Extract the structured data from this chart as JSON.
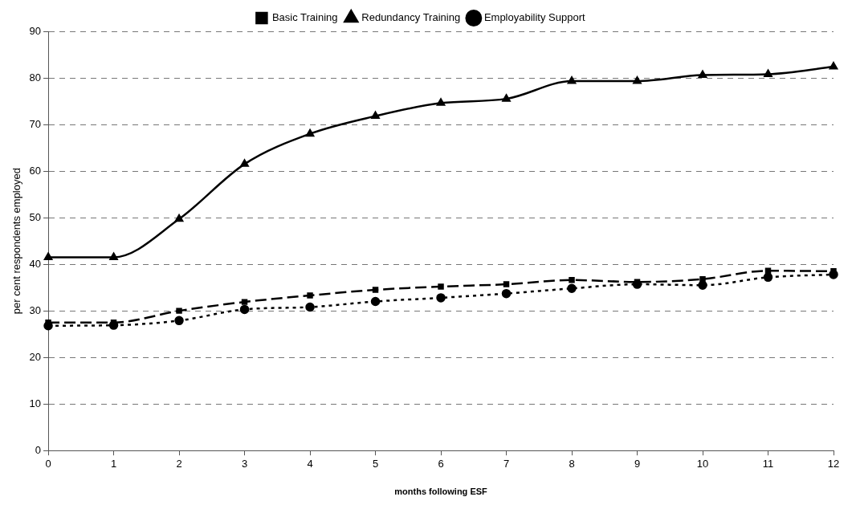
{
  "chart_data": {
    "type": "line",
    "xlabel": "months following ESF",
    "ylabel": "per cent respondents employed",
    "x": [
      0,
      1,
      2,
      3,
      4,
      5,
      6,
      7,
      8,
      9,
      10,
      11,
      12
    ],
    "xlim": [
      0,
      12
    ],
    "xticks": [
      0,
      1,
      2,
      3,
      4,
      5,
      6,
      7,
      8,
      9,
      10,
      11,
      12
    ],
    "ylim": [
      0,
      90
    ],
    "yticks": [
      0,
      10,
      20,
      30,
      40,
      50,
      60,
      70,
      80,
      90
    ],
    "grid": "y",
    "legend": "top",
    "series": [
      {
        "name": "Basic Training",
        "color": "#000000",
        "marker": "square",
        "line_style": "dashed",
        "values": [
          27.5,
          27.5,
          30,
          31.9,
          33.3,
          34.5,
          35.2,
          35.7,
          36.6,
          36.2,
          36.8,
          38.6,
          38.5
        ]
      },
      {
        "name": "Redundancy Training",
        "color": "#000000",
        "marker": "triangle",
        "line_style": "solid",
        "values": [
          41.5,
          41.5,
          49.7,
          61.5,
          68,
          71.8,
          74.6,
          75.5,
          79.3,
          79.3,
          80.6,
          80.8,
          82.4
        ]
      },
      {
        "name": "Employability Support",
        "color": "#000000",
        "marker": "circle",
        "line_style": "dotted",
        "values": [
          26.8,
          26.9,
          27.9,
          30.3,
          30.8,
          32,
          32.8,
          33.7,
          34.8,
          35.7,
          35.5,
          37.2,
          37.8
        ]
      }
    ]
  }
}
